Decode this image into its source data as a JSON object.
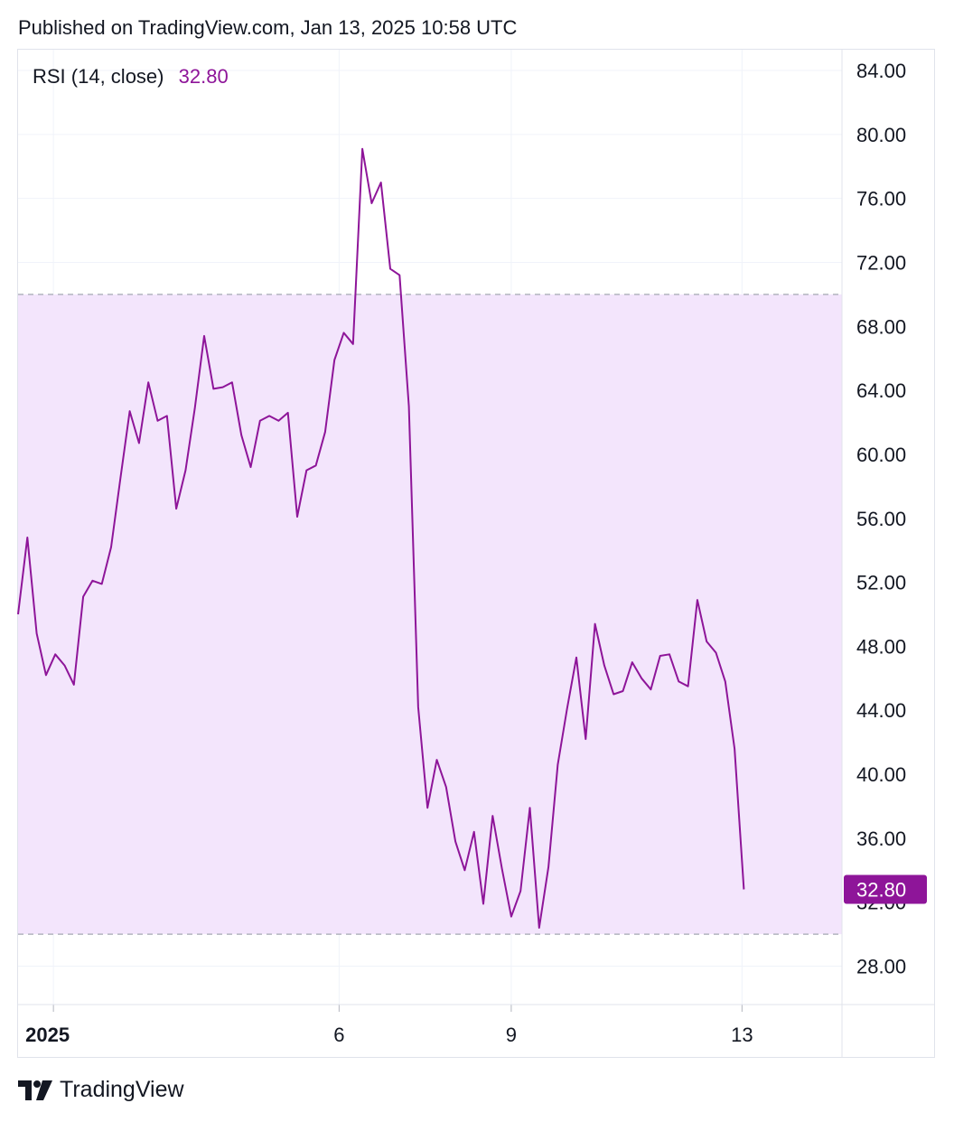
{
  "header": {
    "published_text": "Published on TradingView.com, Jan 13, 2025 10:58 UTC"
  },
  "indicator": {
    "label": "RSI (14, close)",
    "value": "32.80"
  },
  "footer": {
    "brand": "TradingView",
    "logo_icon": "tradingview-logo-icon"
  },
  "colors": {
    "line": "#8e1599",
    "band_fill": "#f3e5fc",
    "badge_bg": "#8e1599",
    "grid": "#f0f3fa",
    "band_border": "#b2b5be"
  },
  "chart_data": {
    "type": "line",
    "title": "",
    "xlabel": "",
    "ylabel": "",
    "ylim": [
      25.6,
      85.3
    ],
    "y_ticks": [
      "84.00",
      "80.00",
      "76.00",
      "72.00",
      "68.00",
      "64.00",
      "60.00",
      "56.00",
      "52.00",
      "48.00",
      "44.00",
      "40.00",
      "36.00",
      "32.00",
      "28.00"
    ],
    "x_ticks": [
      {
        "label": "2025",
        "index": 3.8,
        "bold": true
      },
      {
        "label": "6",
        "index": 34.5,
        "bold": false
      },
      {
        "label": "9",
        "index": 53,
        "bold": false
      },
      {
        "label": "13",
        "index": 77.8,
        "bold": false
      }
    ],
    "bands": {
      "upper": 70,
      "lower": 30
    },
    "last_value": 32.8,
    "series": [
      {
        "values": [
          50.0,
          54.8,
          48.8,
          46.2,
          47.5,
          46.8,
          45.6,
          51.1,
          52.1,
          51.9,
          54.2,
          58.5,
          62.7,
          60.7,
          64.5,
          62.1,
          62.4,
          56.6,
          59.0,
          62.9,
          67.4,
          64.1,
          64.2,
          64.5,
          61.2,
          59.2,
          62.1,
          62.4,
          62.1,
          62.6,
          56.1,
          59.0,
          59.3,
          61.4,
          65.9,
          67.6,
          66.9,
          79.1,
          75.7,
          77.0,
          71.6,
          71.2,
          63.0,
          44.2,
          37.9,
          40.9,
          39.2,
          35.8,
          34.0,
          36.4,
          31.9,
          37.4,
          34.1,
          31.1,
          32.7,
          37.9,
          30.4,
          34.2,
          40.6,
          44.1,
          47.3,
          42.2,
          49.4,
          46.8,
          45.0,
          45.2,
          47.0,
          46.0,
          45.3,
          47.4,
          47.5,
          45.8,
          45.5,
          50.9,
          48.3,
          47.6,
          45.8,
          41.6,
          32.8
        ]
      }
    ]
  }
}
